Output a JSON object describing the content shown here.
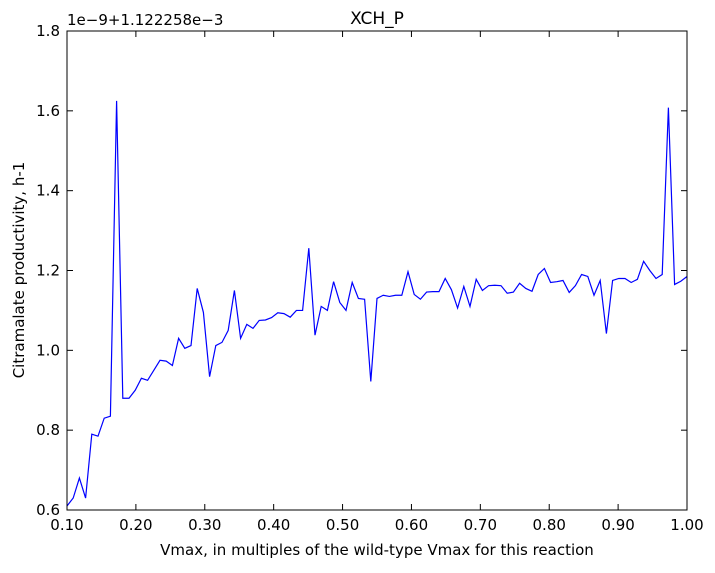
{
  "chart_data": {
    "type": "line",
    "title": "XCH_P",
    "y_offset_label": "1e−9+1.122258e−3",
    "x_label": "Vmax, in multiples of the wild-type Vmax for this reaction",
    "y_label": "Citramalate productivity, h-1",
    "color": "#0000ff",
    "x": [
      0.1,
      0.109,
      0.118,
      0.127,
      0.136,
      0.145,
      0.154,
      0.163,
      0.172,
      0.181,
      0.19,
      0.199,
      0.208,
      0.217,
      0.226,
      0.235,
      0.244,
      0.253,
      0.262,
      0.271,
      0.28,
      0.289,
      0.298,
      0.307,
      0.316,
      0.325,
      0.334,
      0.343,
      0.352,
      0.361,
      0.37,
      0.379,
      0.388,
      0.397,
      0.406,
      0.415,
      0.424,
      0.433,
      0.442,
      0.451,
      0.46,
      0.469,
      0.478,
      0.487,
      0.496,
      0.505,
      0.514,
      0.523,
      0.532,
      0.541,
      0.55,
      0.559,
      0.568,
      0.577,
      0.586,
      0.595,
      0.604,
      0.613,
      0.622,
      0.631,
      0.64,
      0.649,
      0.658,
      0.667,
      0.676,
      0.685,
      0.694,
      0.703,
      0.712,
      0.721,
      0.73,
      0.739,
      0.748,
      0.757,
      0.766,
      0.775,
      0.784,
      0.793,
      0.802,
      0.811,
      0.82,
      0.829,
      0.838,
      0.847,
      0.856,
      0.865,
      0.874,
      0.883,
      0.892,
      0.901,
      0.91,
      0.919,
      0.928,
      0.937,
      0.946,
      0.955,
      0.964,
      0.973,
      0.982,
      0.991,
      1.0
    ],
    "values": [
      0.61,
      0.63,
      0.68,
      0.63,
      0.79,
      0.785,
      0.83,
      0.835,
      1.625,
      0.88,
      0.88,
      0.9,
      0.93,
      0.925,
      0.95,
      0.975,
      0.973,
      0.962,
      1.03,
      1.005,
      1.012,
      1.155,
      1.095,
      0.934,
      1.012,
      1.02,
      1.05,
      1.15,
      1.03,
      1.065,
      1.055,
      1.075,
      1.076,
      1.082,
      1.094,
      1.092,
      1.083,
      1.1,
      1.1,
      1.256,
      1.038,
      1.11,
      1.1,
      1.172,
      1.12,
      1.1,
      1.17,
      1.13,
      1.128,
      0.922,
      1.13,
      1.138,
      1.135,
      1.138,
      1.138,
      1.197,
      1.14,
      1.128,
      1.146,
      1.147,
      1.147,
      1.18,
      1.152,
      1.106,
      1.16,
      1.11,
      1.178,
      1.15,
      1.162,
      1.163,
      1.162,
      1.143,
      1.146,
      1.168,
      1.155,
      1.148,
      1.19,
      1.205,
      1.17,
      1.172,
      1.175,
      1.145,
      1.162,
      1.19,
      1.185,
      1.138,
      1.175,
      1.042,
      1.175,
      1.18,
      1.18,
      1.17,
      1.178,
      1.223,
      1.2,
      1.18,
      1.19,
      1.608,
      1.165,
      1.173,
      1.185
    ],
    "xlim": [
      0.1,
      1.0
    ],
    "ylim": [
      0.6,
      1.8
    ],
    "xticks": [
      {
        "value": 0.1,
        "label": "0.10"
      },
      {
        "value": 0.2,
        "label": "0.20"
      },
      {
        "value": 0.3,
        "label": "0.30"
      },
      {
        "value": 0.4,
        "label": "0.40"
      },
      {
        "value": 0.5,
        "label": "0.50"
      },
      {
        "value": 0.6,
        "label": "0.60"
      },
      {
        "value": 0.7,
        "label": "0.70"
      },
      {
        "value": 0.8,
        "label": "0.80"
      },
      {
        "value": 0.9,
        "label": "0.90"
      },
      {
        "value": 1.0,
        "label": "1.00"
      }
    ],
    "yticks": [
      0.6,
      0.8,
      {
        "value": 1.0,
        "label": "1.0"
      },
      1.2,
      1.4,
      1.6,
      1.8
    ]
  }
}
